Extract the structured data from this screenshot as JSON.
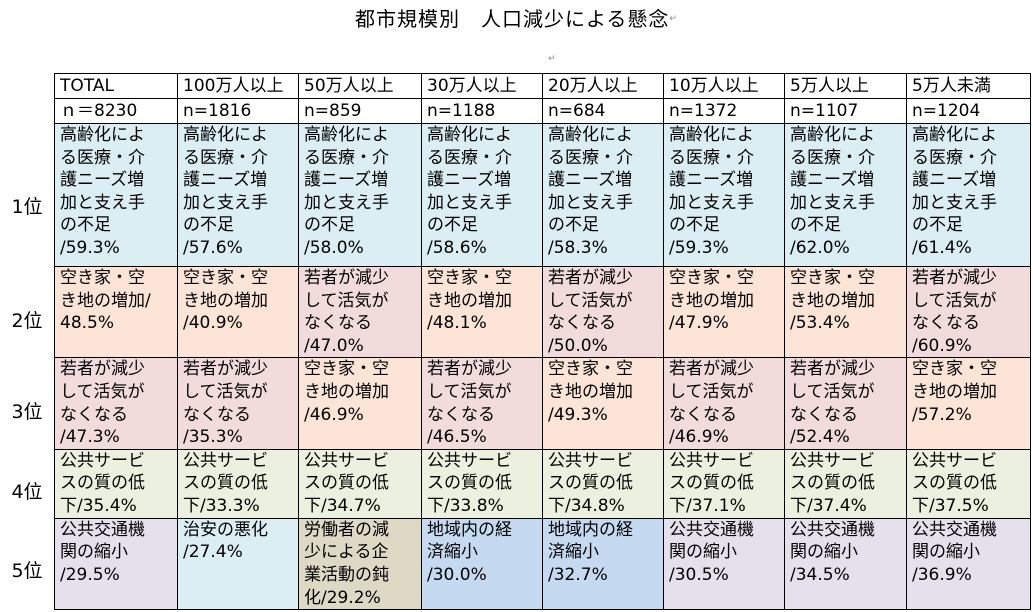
{
  "title": "都市規模別　人口減少による懸念",
  "columns": [
    {
      "label": "TOTAL",
      "n": "ｎ＝8230"
    },
    {
      "label": "100万人以上",
      "n": "n=1816"
    },
    {
      "label": "50万人以上",
      "n": "n=859"
    },
    {
      "label": "30万人以上",
      "n": "n=1188"
    },
    {
      "label": "20万人以上",
      "n": "n=684"
    },
    {
      "label": "10万人以上",
      "n": "n=1372"
    },
    {
      "label": "5万人以上",
      "n": "n=1107"
    },
    {
      "label": "5万人未満",
      "n": "n=1204"
    }
  ],
  "ranks": [
    {
      "label": "1位",
      "cells": [
        {
          "text": "高齢化によ\nる医療・介\n護ニーズ増\n加と支え手\nの不足\n/59.3%",
          "color": "#dbeef4"
        },
        {
          "text": "高齢化によ\nる医療・介\n護ニーズ増\n加と支え手\nの不足\n/57.6%",
          "color": "#dbeef4"
        },
        {
          "text": "高齢化によ\nる医療・介\n護ニーズ増\n加と支え手\nの不足\n/58.0%",
          "color": "#dbeef4"
        },
        {
          "text": "高齢化によ\nる医療・介\n護ニーズ増\n加と支え手\nの不足\n/58.6%",
          "color": "#dbeef4"
        },
        {
          "text": "高齢化によ\nる医療・介\n護ニーズ増\n加と支え手\nの不足\n/58.3%",
          "color": "#dbeef4"
        },
        {
          "text": "高齢化によ\nる医療・介\n護ニーズ増\n加と支え手\nの不足\n/59.3%",
          "color": "#dbeef4"
        },
        {
          "text": "高齢化によ\nる医療・介\n護ニーズ増\n加と支え手\nの不足\n/62.0%",
          "color": "#dbeef4"
        },
        {
          "text": "高齢化によ\nる医療・介\n護ニーズ増\n加と支え手\nの不足\n/61.4%",
          "color": "#dbeef4"
        }
      ]
    },
    {
      "label": "2位",
      "cells": [
        {
          "text": "空き家・空\nき地の増加/\n48.5%",
          "color": "#fce4d6"
        },
        {
          "text": "空き家・空\nき地の増加\n/40.9%",
          "color": "#fce4d6"
        },
        {
          "text": "若者が減少\nして活気が\nなくなる\n/47.0%",
          "color": "#f2dcdb"
        },
        {
          "text": "空き家・空\nき地の増加\n/48.1%",
          "color": "#fce4d6"
        },
        {
          "text": "若者が減少\nして活気が\nなくなる\n/50.0%",
          "color": "#f2dcdb"
        },
        {
          "text": "空き家・空\nき地の増加\n/47.9%",
          "color": "#fce4d6"
        },
        {
          "text": "空き家・空\nき地の増加\n/53.4%",
          "color": "#fce4d6"
        },
        {
          "text": "若者が減少\nして活気が\nなくなる\n/60.9%",
          "color": "#f2dcdb"
        }
      ]
    },
    {
      "label": "3位",
      "cells": [
        {
          "text": "若者が減少\nして活気が\nなくなる\n/47.3%",
          "color": "#f2dcdb"
        },
        {
          "text": "若者が減少\nして活気が\nなくなる\n/35.3%",
          "color": "#f2dcdb"
        },
        {
          "text": "空き家・空\nき地の増加\n/46.9%",
          "color": "#fce4d6"
        },
        {
          "text": "若者が減少\nして活気が\nなくなる\n/46.5%",
          "color": "#f2dcdb"
        },
        {
          "text": "空き家・空\nき地の増加\n/49.3%",
          "color": "#fce4d6"
        },
        {
          "text": "若者が減少\nして活気が\nなくなる\n/46.9%",
          "color": "#f2dcdb"
        },
        {
          "text": "若者が減少\nして活気が\nなくなる\n/52.4%",
          "color": "#f2dcdb"
        },
        {
          "text": "空き家・空\nき地の増加\n/57.2%",
          "color": "#fce4d6"
        }
      ]
    },
    {
      "label": "4位",
      "cells": [
        {
          "text": "公共サービ\nスの質の低\n下/35.4%",
          "color": "#ebf1de"
        },
        {
          "text": "公共サービ\nスの質の低\n下/33.3%",
          "color": "#ebf1de"
        },
        {
          "text": "公共サービ\nスの質の低\n下/34.7%",
          "color": "#ebf1de"
        },
        {
          "text": "公共サービ\nスの質の低\n下/33.8%",
          "color": "#ebf1de"
        },
        {
          "text": "公共サービ\nスの質の低\n下/34.8%",
          "color": "#ebf1de"
        },
        {
          "text": "公共サービ\nスの質の低\n下/37.1%",
          "color": "#ebf1de"
        },
        {
          "text": "公共サービ\nスの質の低\n下/37.4%",
          "color": "#ebf1de"
        },
        {
          "text": "公共サービ\nスの質の低\n下/37.5%",
          "color": "#ebf1de"
        }
      ]
    },
    {
      "label": "5位",
      "cells": [
        {
          "text": "公共交通機\n関の縮小\n/29.5%",
          "color": "#e6e0ec"
        },
        {
          "text": "治安の悪化\n/27.4%",
          "color": "#dbeef4"
        },
        {
          "text": "労働者の減\n少による企\n業活動の鈍\n化/29.2%",
          "color": "#ddd9c4"
        },
        {
          "text": "地域内の経\n済縮小\n/30.0%",
          "color": "#c5d9f1"
        },
        {
          "text": "地域内の経\n済縮小\n/32.7%",
          "color": "#c5d9f1"
        },
        {
          "text": "公共交通機\n関の縮小\n/30.5%",
          "color": "#e6e0ec"
        },
        {
          "text": "公共交通機\n関の縮小\n/34.5%",
          "color": "#e6e0ec"
        },
        {
          "text": "公共交通機\n関の縮小\n/36.9%",
          "color": "#e6e0ec"
        }
      ]
    }
  ]
}
